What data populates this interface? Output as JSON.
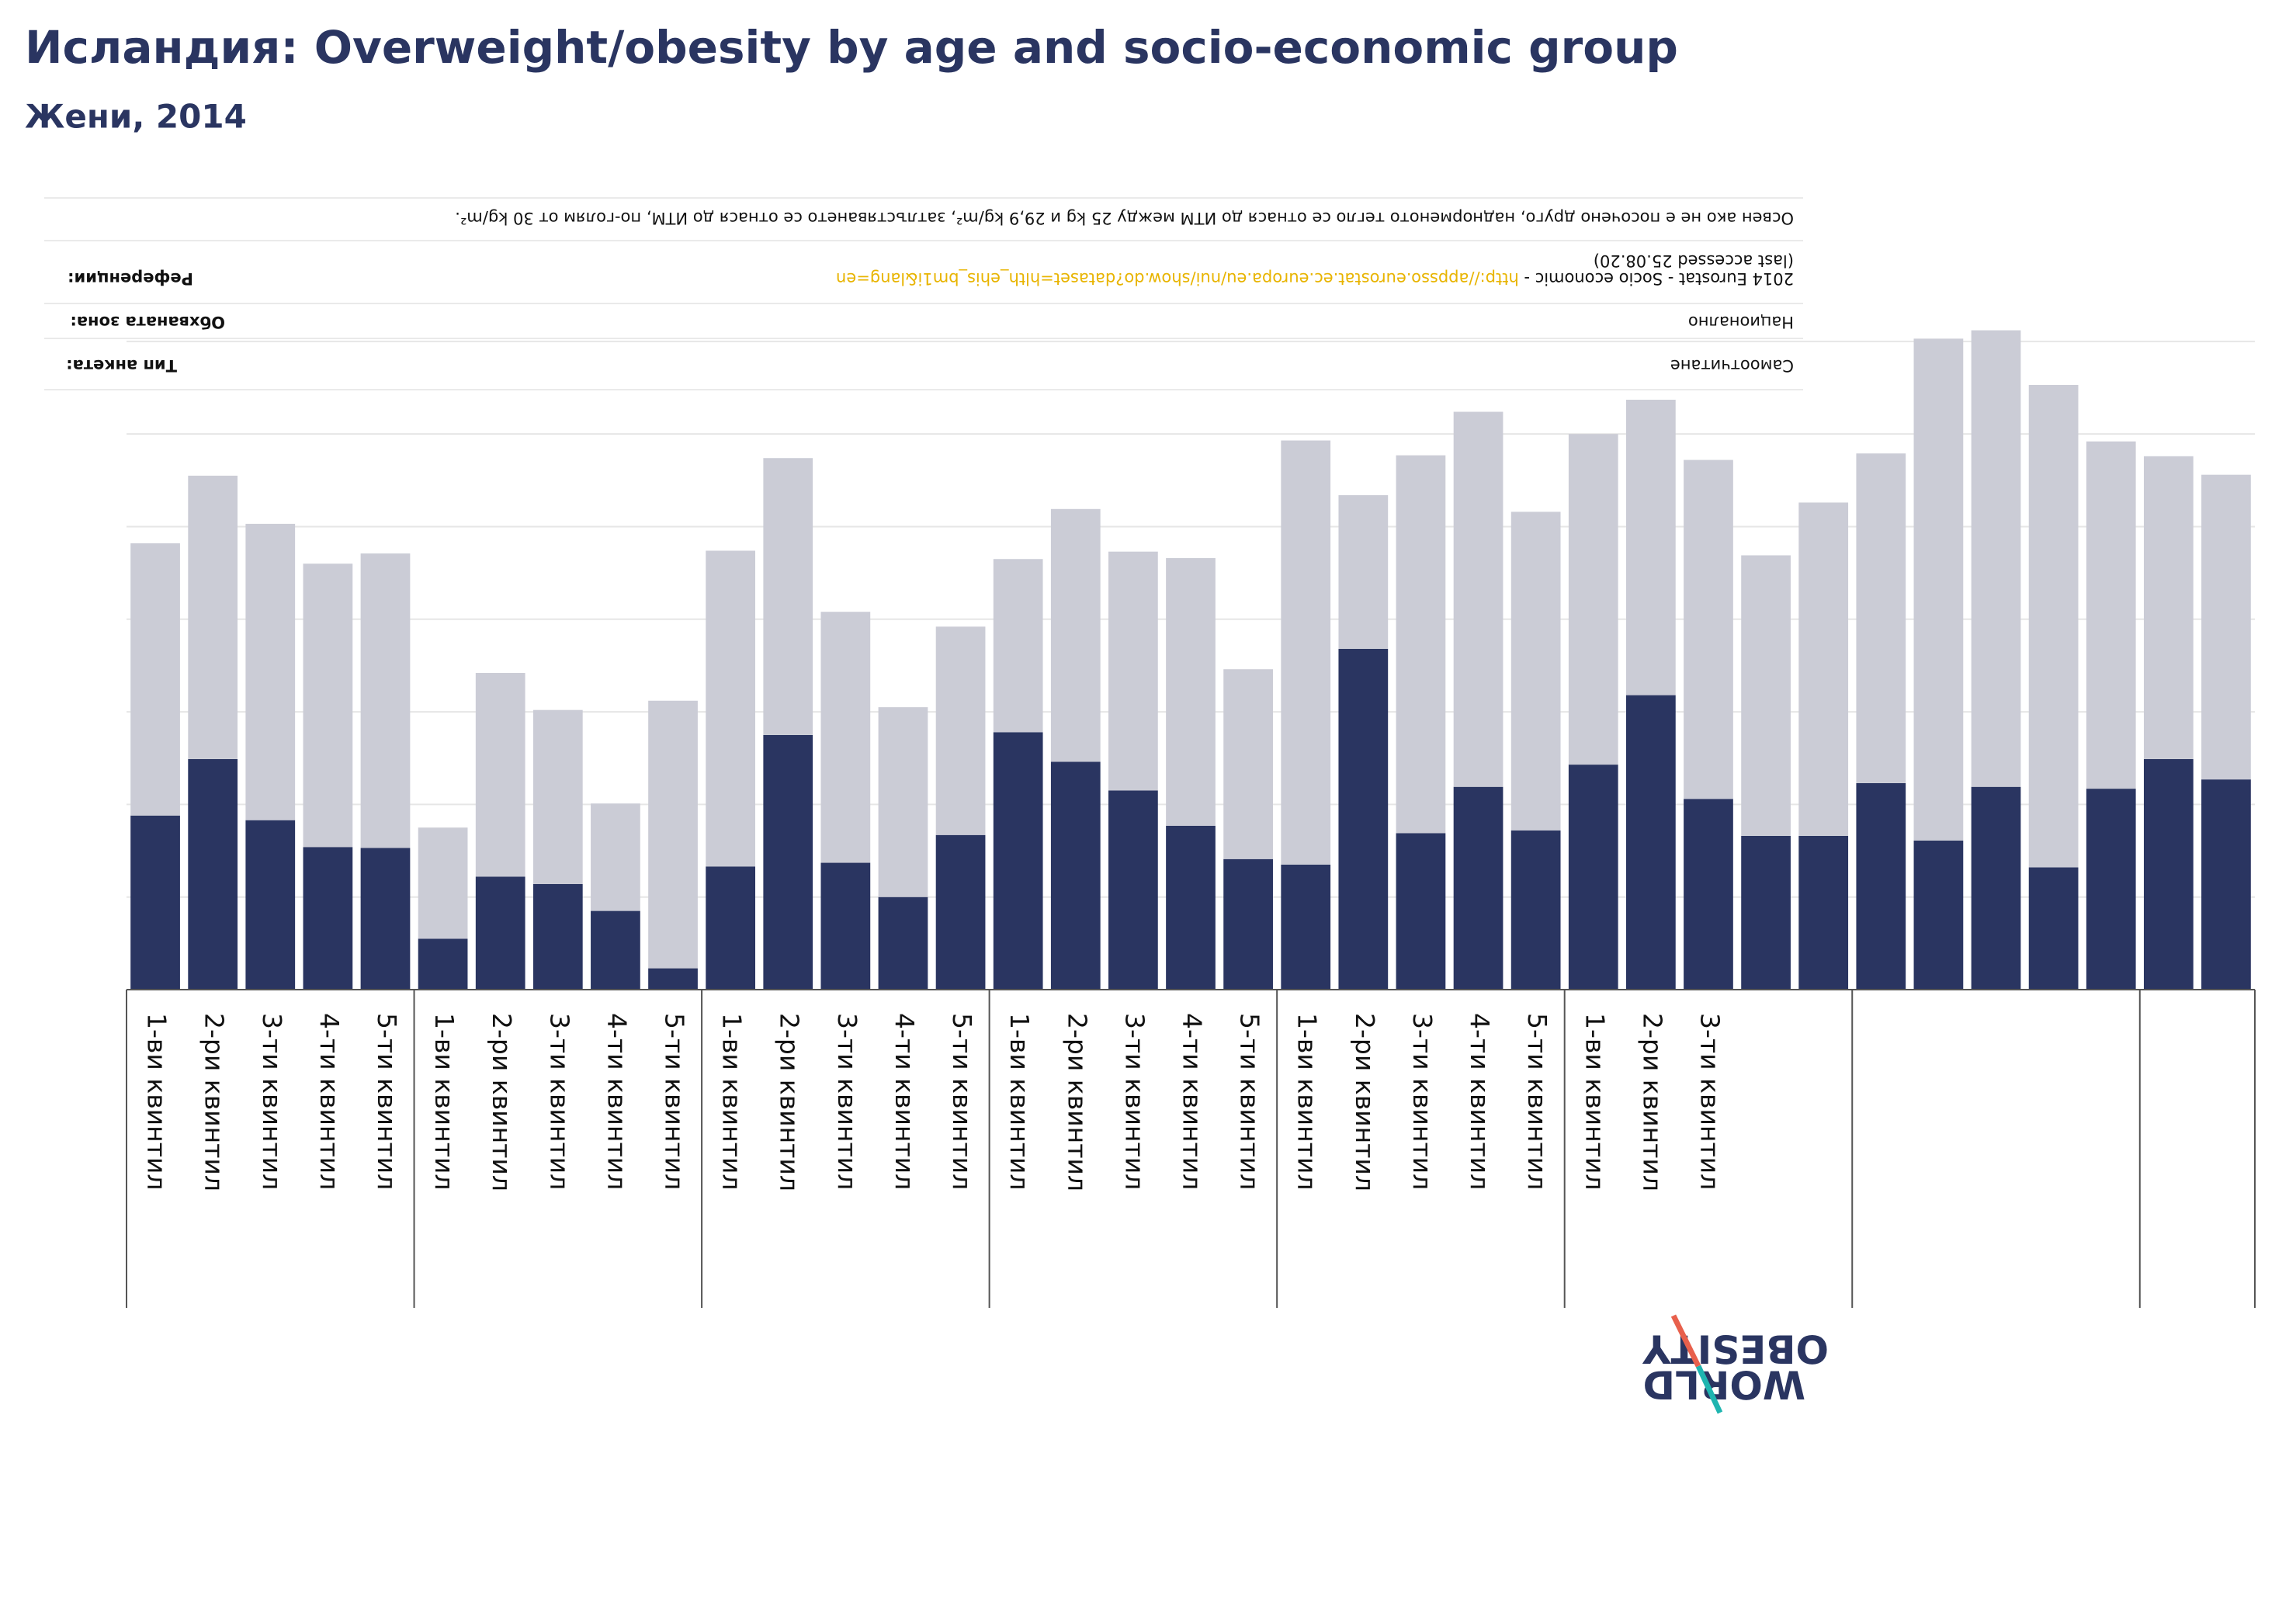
{
  "title": "Исландия: Overweight/obesity by age and socio-economic group",
  "subtitle": "Жени, 2014",
  "notes": {
    "definition": "Освен ако не е посочено друго, наднорменото тегло се отнася до ИТМ между 25 kg и 29,9 kg/m², затлъстяването се отнася до ИТМ, по-голям от 30 kg/m².",
    "references_label": "Референции:",
    "references_text": "2014 Eurostat - Socio economic - ",
    "references_url": "http://appsso.eurostat.ec.europa.eu/nui/show.do?dataset=hlth_ehis_bm1i&lang=en",
    "references_accessed": "(last accessed 25.08.20)",
    "area_label": "Обхваната зона:",
    "area_value": "Национално",
    "survey_label": "Тип анкета:",
    "survey_value": "Самоотчитане"
  },
  "logo": [
    "WORLD",
    "OBESITY"
  ],
  "chart_data": {
    "type": "stacked_bar",
    "categories": [
      "1-ви квинтил",
      "2-ри квинтил",
      "3-ти квинтил",
      "4-ти квинтил",
      "5-ти квинтил",
      "1-ви квинтил",
      "2-ри квинтил",
      "3-ти квинтил",
      "4-ти квинтил",
      "5-ти квинтил",
      "1-ви квинтил",
      "2-ри квинтил",
      "3-ти квинтил",
      "4-ти квинтил",
      "5-ти квинтил",
      "1-ви квинтил",
      "2-ри квинтил",
      "3-ти квинтил",
      "4-ти квинтил",
      "5-ти квинтил",
      "1-ви квинтил",
      "2-ри квинтил",
      "3-ти квинтил",
      "4-ти квинтил",
      "5-ти квинтил",
      "1-ви квинтил",
      "2-ри квинтил",
      "3-ти квинтил",
      null,
      null,
      null,
      null,
      null,
      null,
      null,
      null,
      null
    ],
    "series": [
      {
        "color": "#2a3561",
        "values": [
          18.8,
          24.9,
          18.3,
          15.4,
          15.3,
          5.5,
          12.2,
          11.4,
          8.5,
          2.3,
          13.3,
          27.5,
          13.7,
          10.0,
          16.7,
          27.8,
          24.6,
          21.5,
          17.7,
          14.1,
          13.5,
          36.8,
          16.9,
          21.9,
          17.2,
          24.3,
          31.8,
          20.6,
          16.6,
          16.6,
          22.3,
          16.1,
          21.9,
          13.2,
          21.7,
          24.9,
          22.7
        ]
      },
      {
        "color": "#cbccd6",
        "values": [
          29.4,
          30.6,
          32.0,
          30.6,
          31.8,
          12.0,
          22.0,
          18.8,
          11.6,
          28.9,
          34.1,
          29.9,
          27.1,
          20.5,
          22.5,
          18.7,
          27.3,
          25.8,
          28.9,
          20.5,
          45.8,
          16.6,
          40.8,
          40.5,
          34.4,
          35.7,
          31.9,
          36.6,
          30.3,
          36.0,
          35.6,
          54.2,
          49.3,
          52.1,
          37.5,
          32.7,
          32.9
        ]
      }
    ],
    "ylim": [
      0,
      72
    ],
    "yticks": [
      0,
      10,
      20,
      30,
      40,
      50,
      60,
      70
    ],
    "grid": true
  }
}
